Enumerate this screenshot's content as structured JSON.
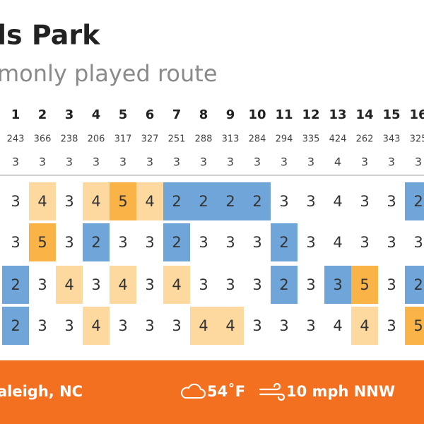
{
  "header": {
    "title": "ls Park",
    "subtitle": "monly played route"
  },
  "holes": {
    "numbers": [
      1,
      2,
      3,
      4,
      5,
      6,
      7,
      8,
      9,
      10,
      11,
      12,
      13,
      14,
      15,
      16
    ],
    "distances": [
      243,
      366,
      238,
      206,
      317,
      327,
      251,
      288,
      313,
      284,
      294,
      335,
      424,
      262,
      343,
      325
    ],
    "pars": [
      3,
      3,
      3,
      3,
      3,
      3,
      3,
      3,
      3,
      3,
      3,
      3,
      4,
      3,
      3,
      3
    ]
  },
  "rounds": [
    [
      3,
      4,
      3,
      4,
      5,
      4,
      2,
      2,
      2,
      2,
      3,
      3,
      4,
      3,
      3,
      2
    ],
    [
      3,
      5,
      3,
      2,
      3,
      3,
      2,
      3,
      3,
      3,
      2,
      3,
      4,
      3,
      3,
      3
    ],
    [
      2,
      3,
      4,
      3,
      4,
      3,
      4,
      3,
      3,
      3,
      2,
      3,
      3,
      5,
      3,
      2
    ],
    [
      2,
      3,
      3,
      4,
      3,
      3,
      3,
      4,
      4,
      3,
      3,
      3,
      4,
      4,
      3,
      5
    ]
  ],
  "footer": {
    "location": "aleigh, NC",
    "temperature": "54˚F",
    "wind": "10 mph NNW"
  }
}
